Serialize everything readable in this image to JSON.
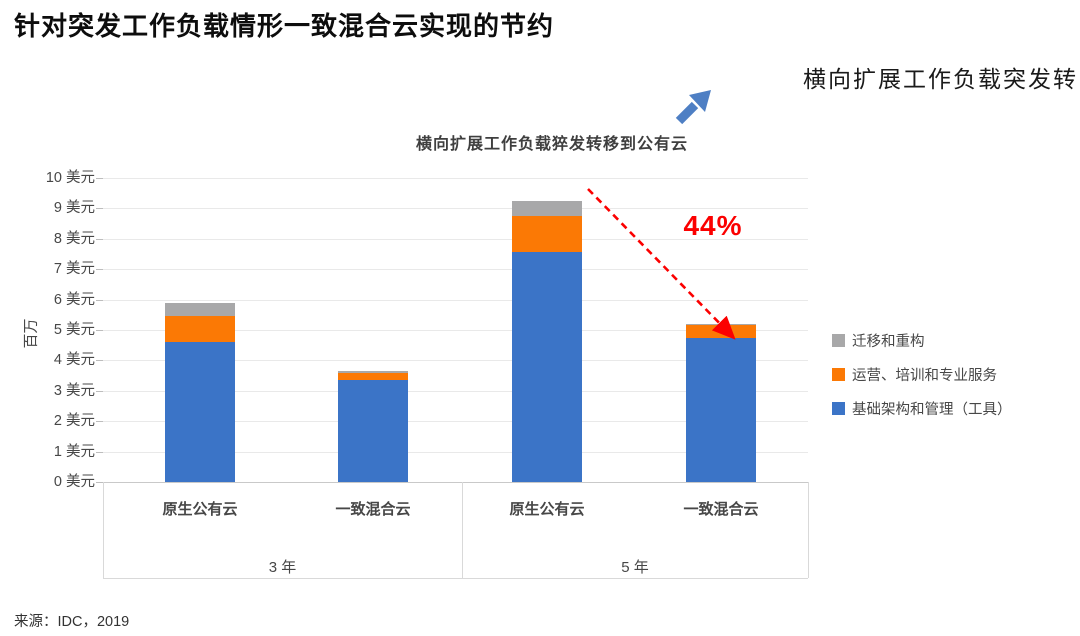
{
  "slide": {
    "title": "针对突发工作负载情形一致混合云实现的节约",
    "top_right_note": "横向扩展工作负载突发转",
    "arrow_icon_color": "#4e7fc4",
    "source": "来源：IDC，2019"
  },
  "chart_data": {
    "type": "bar",
    "stacked": true,
    "title": "横向扩展工作负载猝发转移到公有云",
    "y_axis_title": "百万",
    "value_unit": "美元",
    "ylim": [
      0,
      10
    ],
    "y_tick_labels": [
      "0 美元",
      "1 美元",
      "2 美元",
      "3 美元",
      "4 美元",
      "5 美元",
      "6 美元",
      "7 美元",
      "8 美元",
      "9 美元",
      "10 美元"
    ],
    "grid": true,
    "legend_position": "right",
    "groups": [
      {
        "label": "3 年",
        "categories": [
          "原生公有云",
          "一致混合云"
        ]
      },
      {
        "label": "5 年",
        "categories": [
          "原生公有云",
          "一致混合云"
        ]
      }
    ],
    "series": [
      {
        "name": "迁移和重构",
        "color": "#a8a8a9",
        "values": [
          0.45,
          0.05,
          0.5,
          0.05
        ]
      },
      {
        "name": "运营、培训和专业服务",
        "color": "#fb7905",
        "values": [
          0.85,
          0.25,
          1.2,
          0.4
        ]
      },
      {
        "name": "基础架构和管理（工具）",
        "color": "#3b74c7",
        "values": [
          4.6,
          3.35,
          7.55,
          4.75
        ]
      }
    ],
    "totals": [
      5.9,
      3.65,
      9.25,
      5.2
    ],
    "annotation": {
      "label": "44%",
      "color": "#fb0000"
    }
  }
}
